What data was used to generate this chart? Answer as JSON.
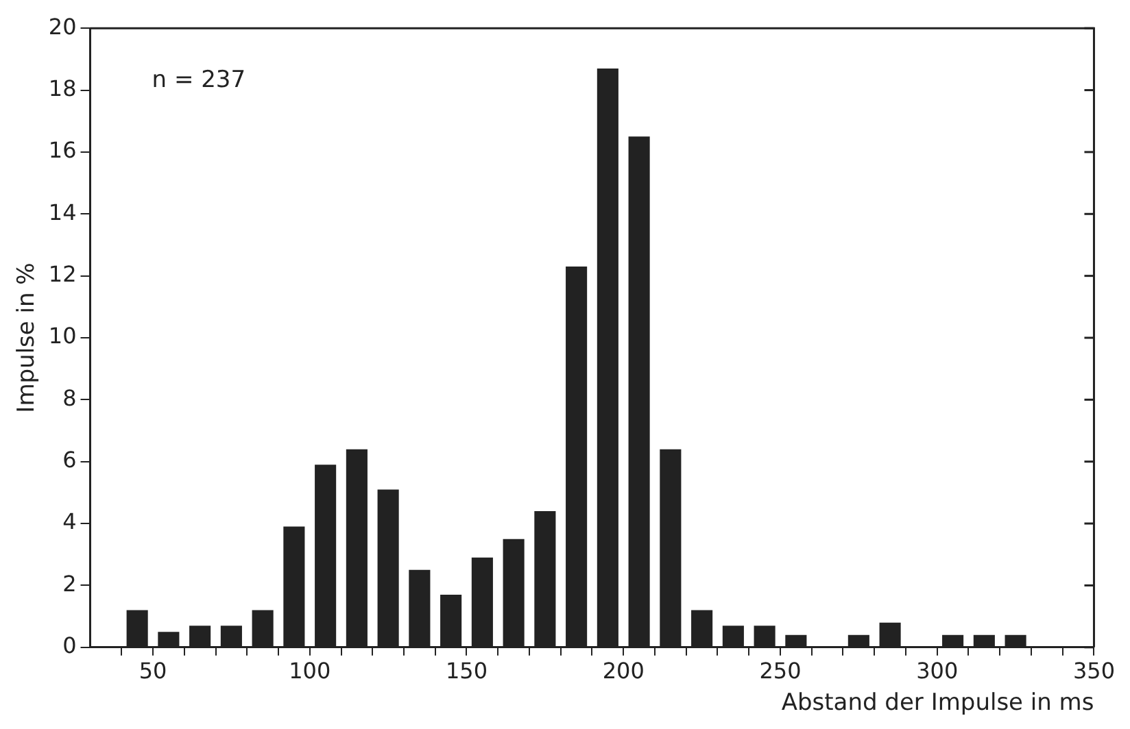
{
  "chart_data": {
    "type": "histogram",
    "xlabel": "Abstand der Impulse in ms",
    "ylabel": "Impulse in %",
    "annotations": [
      "n = 237"
    ],
    "bins": [
      40,
      50,
      60,
      70,
      80,
      90,
      100,
      110,
      120,
      130,
      140,
      150,
      160,
      170,
      180,
      190,
      200,
      210,
      220,
      230,
      240,
      250,
      260,
      270,
      280,
      290,
      300,
      310,
      320,
      330
    ],
    "values": [
      1.2,
      0.5,
      0.7,
      0.7,
      1.2,
      3.9,
      5.9,
      6.4,
      5.1,
      2.5,
      1.7,
      2.9,
      3.5,
      4.4,
      12.3,
      18.7,
      16.5,
      6.4,
      1.2,
      0.7,
      0.7,
      0.4,
      0,
      0.4,
      0.8,
      0,
      0.4,
      0.4,
      0.4
    ],
    "color": "#222222",
    "xlim": [
      30,
      350
    ],
    "ylim": [
      0,
      20
    ],
    "xticks": [
      {
        "value": 40,
        "label": null
      },
      50,
      {
        "value": 60,
        "label": null
      },
      {
        "value": 70,
        "label": null
      },
      {
        "value": 80,
        "label": null
      },
      {
        "value": 90,
        "label": null
      },
      100,
      {
        "value": 110,
        "label": null
      },
      {
        "value": 120,
        "label": null
      },
      {
        "value": 130,
        "label": null
      },
      {
        "value": 140,
        "label": null
      },
      150,
      {
        "value": 160,
        "label": null
      },
      {
        "value": 170,
        "label": null
      },
      {
        "value": 180,
        "label": null
      },
      {
        "value": 190,
        "label": null
      },
      200,
      {
        "value": 210,
        "label": null
      },
      {
        "value": 220,
        "label": null
      },
      {
        "value": 230,
        "label": null
      },
      {
        "value": 240,
        "label": null
      },
      250,
      {
        "value": 260,
        "label": null
      },
      {
        "value": 270,
        "label": null
      },
      {
        "value": 280,
        "label": null
      },
      {
        "value": 290,
        "label": null
      },
      300,
      {
        "value": 310,
        "label": null
      },
      {
        "value": 320,
        "label": null
      },
      {
        "value": 330,
        "label": null
      },
      {
        "value": 340,
        "label": null
      },
      350
    ],
    "yticks": [
      0,
      2,
      4,
      6,
      8,
      10,
      12,
      14,
      16,
      18,
      20
    ],
    "grid": false
  }
}
